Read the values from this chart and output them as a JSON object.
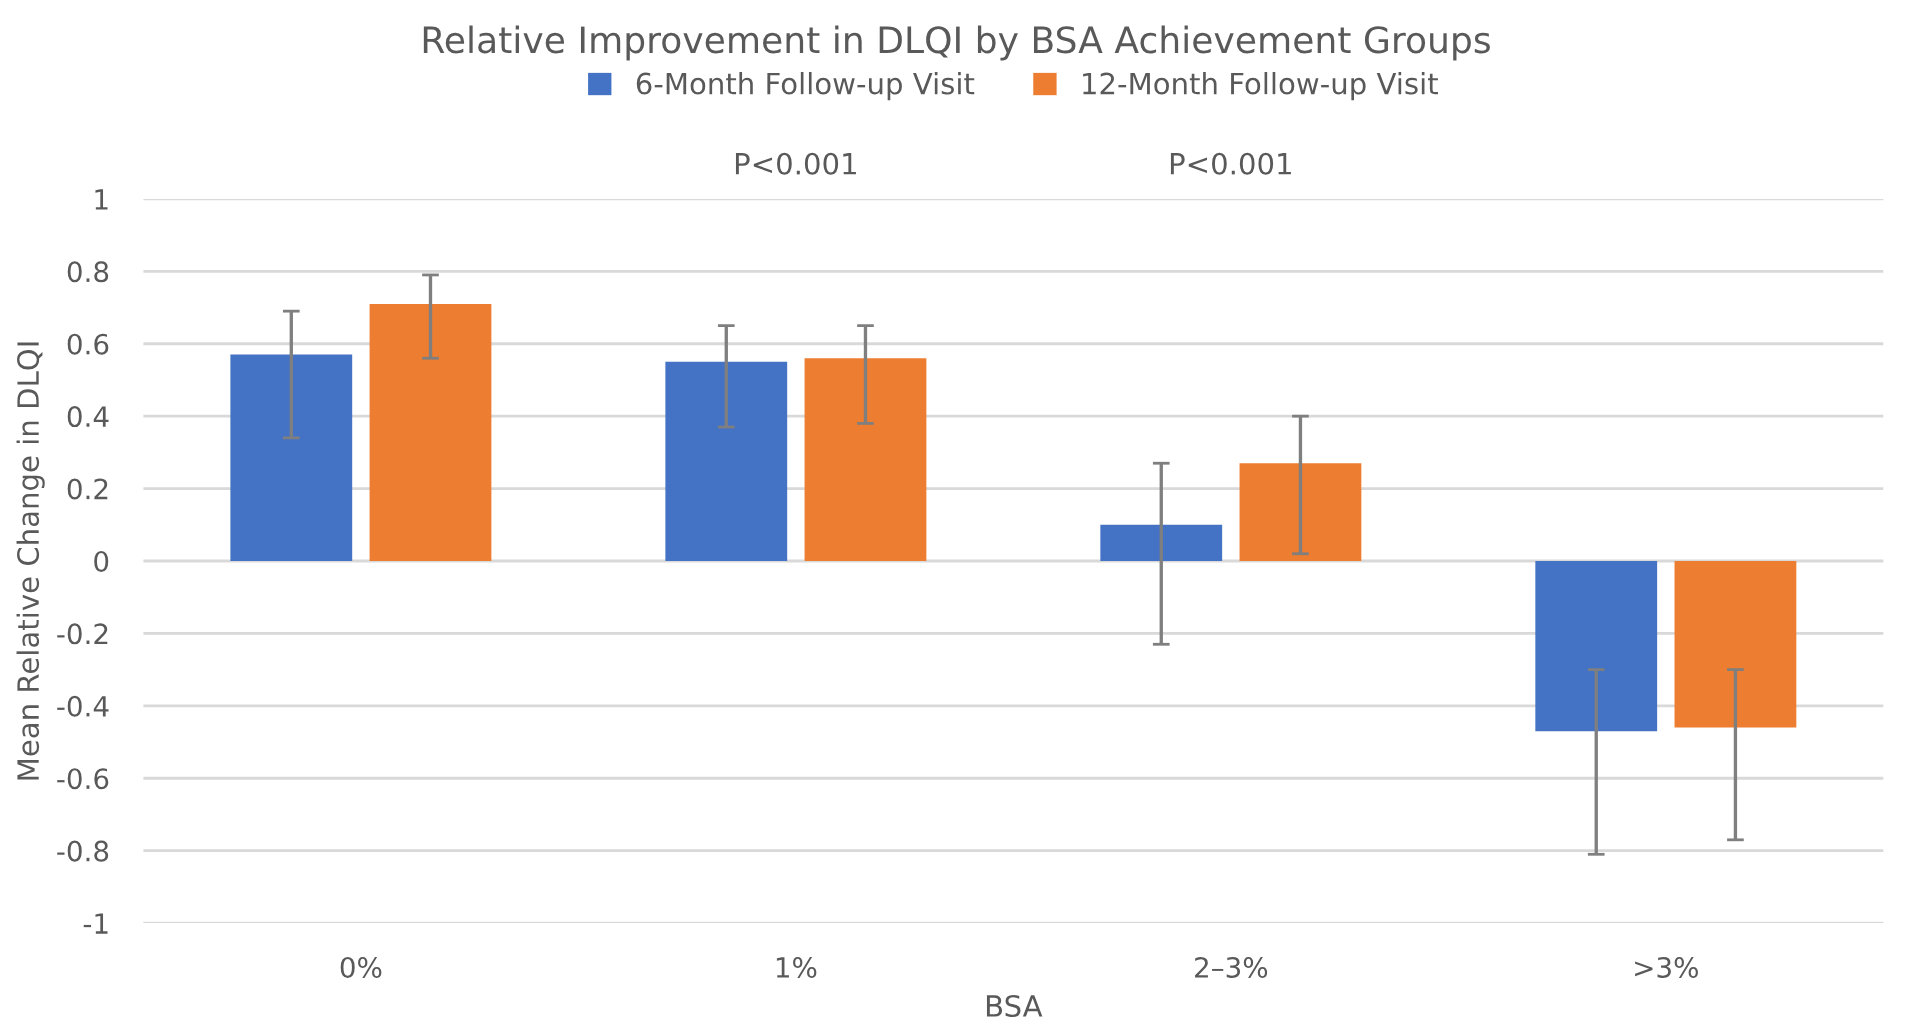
{
  "chart_data": {
    "type": "bar",
    "title": "Relative Improvement in DLQI by BSA Achievement Groups",
    "xlabel": "BSA",
    "ylabel": "Mean Relative Change in DLQI",
    "categories": [
      "0%",
      "1%",
      "2–3%",
      ">3%"
    ],
    "series": [
      {
        "name": "6-Month Follow-up Visit",
        "color": "#4472c4",
        "values": [
          0.57,
          0.55,
          0.1,
          -0.47
        ],
        "errors": [
          [
            0.34,
            0.69
          ],
          [
            0.37,
            0.65
          ],
          [
            -0.23,
            0.27
          ],
          [
            -0.81,
            -0.3
          ]
        ]
      },
      {
        "name": "12-Month Follow-up Visit",
        "color": "#ed7d31",
        "values": [
          0.71,
          0.56,
          0.27,
          -0.46
        ],
        "errors": [
          [
            0.56,
            0.79
          ],
          [
            0.38,
            0.65
          ],
          [
            0.02,
            0.4
          ],
          [
            -0.77,
            -0.3
          ]
        ]
      }
    ],
    "ylim": [
      -1,
      1
    ],
    "yticks": [
      -1,
      -0.8,
      -0.6,
      -0.4,
      -0.2,
      0,
      0.2,
      0.4,
      0.6,
      0.8,
      1
    ],
    "annotations": [
      "P<0.001",
      "P<0.001"
    ],
    "grid": "y",
    "legend": "top"
  }
}
